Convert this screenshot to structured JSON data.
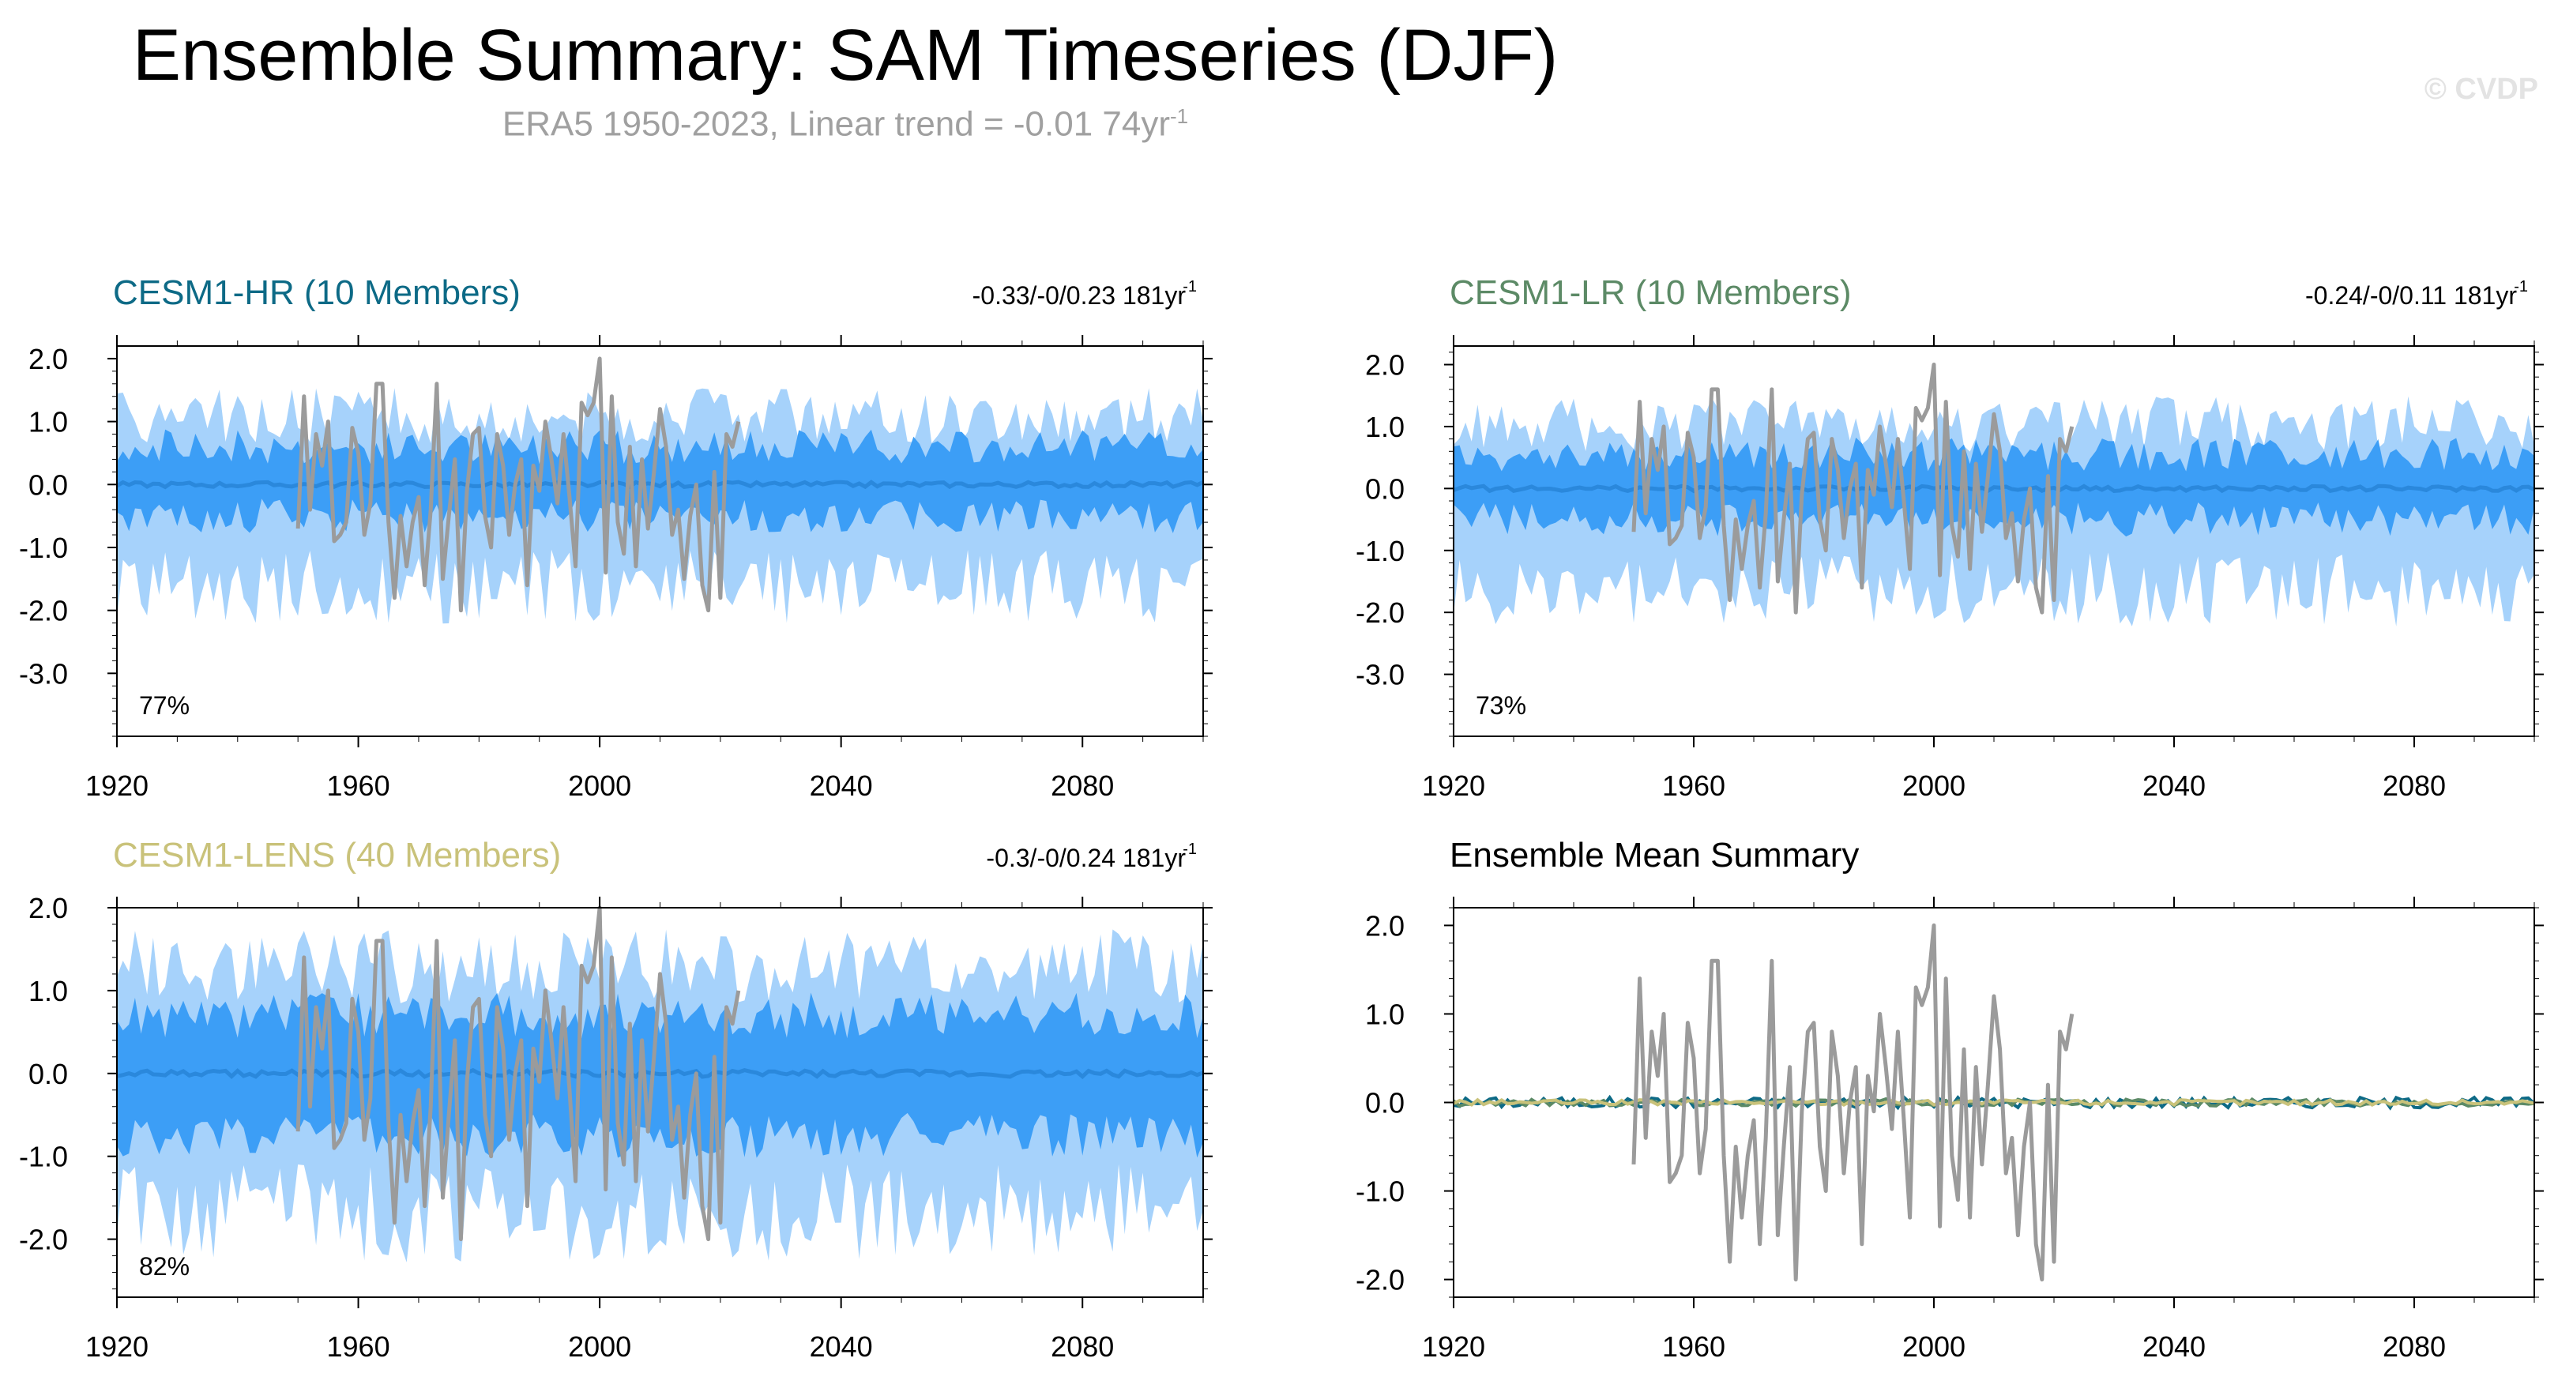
{
  "header": {
    "title": "Ensemble Summary: SAM Timeseries (DJF)",
    "subtitle": "ERA5 1950-2023, Linear trend = -0.01 74yr",
    "subtitle_sup": "-1",
    "watermark": "© CVDP"
  },
  "colors": {
    "outer_band": "#a6d2fb",
    "inner_band": "#3c9ef6",
    "ensemble_mean": "#2a88dc",
    "observations": "#9b9b9b",
    "hr": "#0d6a86",
    "lr": "#5c8a66",
    "lens": "#c9c27a"
  },
  "chart_data": [
    {
      "type": "area",
      "id": "hr",
      "title": "CESM1-HR (10 Members)",
      "stats": "-0.33/-0/0.23 181yr",
      "stats_sup": "-1",
      "percent": "77%",
      "xlim": [
        1920,
        2100
      ],
      "ylim": [
        -4.0,
        2.2
      ],
      "yticks": [
        2.0,
        1.0,
        0.0,
        -1.0,
        -2.0,
        -3.0
      ],
      "ytick_labels": [
        "2.0",
        "1.0",
        "0.0",
        "-1.0",
        "-2.0",
        "-3.0"
      ],
      "xticks": [
        1920,
        1960,
        2000,
        2040,
        2080
      ],
      "xtick_labels": [
        "1920",
        "1960",
        "2000",
        "2040",
        "2080"
      ],
      "outer_envelope": {
        "upper": 1.05,
        "lower": -1.45
      },
      "inner_envelope": {
        "upper": 0.6,
        "lower": -0.5
      },
      "mean_level": 0.0
    },
    {
      "type": "area",
      "id": "lr",
      "title": "CESM1-LR (10 Members)",
      "stats": "-0.24/-0/0.11 181yr",
      "stats_sup": "-1",
      "percent": "73%",
      "xlim": [
        1920,
        2100
      ],
      "ylim": [
        -4.0,
        2.3
      ],
      "yticks": [
        2.0,
        1.0,
        0.0,
        -1.0,
        -2.0,
        -3.0
      ],
      "ytick_labels": [
        "2.0",
        "1.0",
        "0.0",
        "-1.0",
        "-2.0",
        "-3.0"
      ],
      "xticks": [
        1920,
        1960,
        2000,
        2040,
        2080
      ],
      "xtick_labels": [
        "1920",
        "1960",
        "2000",
        "2040",
        "2080"
      ],
      "outer_envelope": {
        "upper": 1.0,
        "lower": -1.45
      },
      "inner_envelope": {
        "upper": 0.55,
        "lower": -0.5
      },
      "mean_level": 0.0
    },
    {
      "type": "area",
      "id": "lens",
      "title": "CESM1-LENS (40 Members)",
      "stats": "-0.3/-0/0.24 181yr",
      "stats_sup": "-1",
      "percent": "82%",
      "xlim": [
        1920,
        2100
      ],
      "ylim": [
        -2.7,
        2.0
      ],
      "yticks": [
        2.0,
        1.0,
        0.0,
        -1.0,
        -2.0
      ],
      "ytick_labels": [
        "2.0",
        "1.0",
        "0.0",
        "-1.0",
        "-2.0"
      ],
      "xticks": [
        1920,
        1960,
        2000,
        2040,
        2080
      ],
      "xtick_labels": [
        "1920",
        "1960",
        "2000",
        "2040",
        "2080"
      ],
      "outer_envelope": {
        "upper": 1.25,
        "lower": -1.5
      },
      "inner_envelope": {
        "upper": 0.7,
        "lower": -0.75
      },
      "mean_level": 0.0
    },
    {
      "type": "line",
      "id": "mean",
      "title": "Ensemble Mean Summary",
      "stats": "",
      "percent": "",
      "xlim": [
        1920,
        2100
      ],
      "ylim": [
        -2.2,
        2.2
      ],
      "yticks": [
        2.0,
        1.0,
        0.0,
        -1.0,
        -2.0
      ],
      "ytick_labels": [
        "2.0",
        "1.0",
        "0.0",
        "-1.0",
        "-2.0"
      ],
      "xticks": [
        1920,
        1960,
        2000,
        2040,
        2080
      ],
      "xtick_labels": [
        "1920",
        "1960",
        "2000",
        "2040",
        "2080"
      ],
      "series": [
        {
          "color_key": "hr",
          "amplitude": 0.06
        },
        {
          "color_key": "lr",
          "amplitude": 0.04
        },
        {
          "color_key": "lens",
          "amplitude": 0.03
        }
      ]
    }
  ],
  "observations": {
    "x_start": 1950,
    "values": [
      -0.7,
      1.4,
      -0.4,
      0.8,
      0.3,
      1.0,
      -0.9,
      -0.8,
      -0.6,
      0.9,
      0.5,
      -0.8,
      -0.3,
      1.6,
      1.6,
      -0.6,
      -1.8,
      -0.5,
      -1.3,
      -0.6,
      -0.2,
      -1.6,
      -0.4,
      1.6,
      -1.5,
      -0.5,
      0.4,
      -2.0,
      -0.1,
      0.8,
      0.9,
      -0.5,
      -1.0,
      0.8,
      0.3,
      -0.8,
      0.0,
      0.4,
      -1.6,
      0.3,
      -0.1,
      1.0,
      0.4,
      -0.3,
      0.8,
      -0.2,
      -1.3,
      1.3,
      1.1,
      1.3,
      2.0,
      -1.4,
      1.4,
      -0.6,
      -1.1,
      0.6,
      -1.3,
      0.4,
      -0.7,
      0.2,
      1.2,
      0.6,
      -0.8,
      -0.4,
      -1.5,
      -0.5,
      0.0,
      -1.6,
      -2.0,
      0.2,
      -1.8,
      0.8,
      0.6,
      1.0
    ]
  }
}
